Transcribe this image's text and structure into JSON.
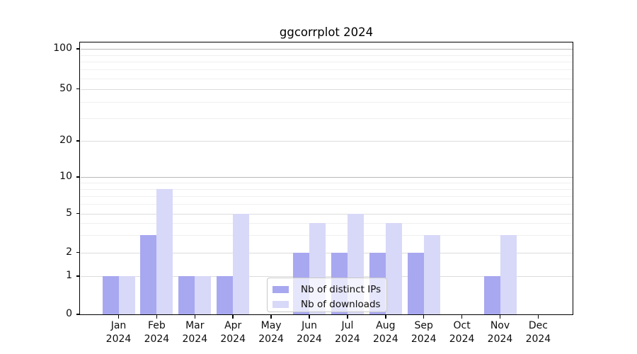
{
  "chart_data": {
    "type": "bar",
    "title": "ggcorrplot 2024",
    "year_label": "2024",
    "categories": [
      "Jan",
      "Feb",
      "Mar",
      "Apr",
      "May",
      "Jun",
      "Jul",
      "Aug",
      "Sep",
      "Oct",
      "Nov",
      "Dec"
    ],
    "series": [
      {
        "name": "Nb of distinct IPs",
        "color": "#a8a8f0",
        "values": [
          1,
          3,
          1,
          1,
          0,
          2,
          2,
          2,
          2,
          0,
          1,
          0
        ]
      },
      {
        "name": "Nb of downloads",
        "color": "#d8d8f8",
        "values": [
          1,
          8,
          1,
          5,
          0,
          4,
          5,
          4,
          3,
          0,
          3,
          0
        ]
      }
    ],
    "y_ticks": [
      0,
      1,
      2,
      5,
      10,
      20,
      50,
      100
    ],
    "ylim": [
      0,
      100
    ],
    "yscale": "log-like",
    "grid": true,
    "legend_position": "lower-center",
    "axis_color": "#000000",
    "grid_decade_color": "#b9b9b9",
    "grid_major_color": "#dcdcdc",
    "grid_minor_color": "#efefef"
  }
}
